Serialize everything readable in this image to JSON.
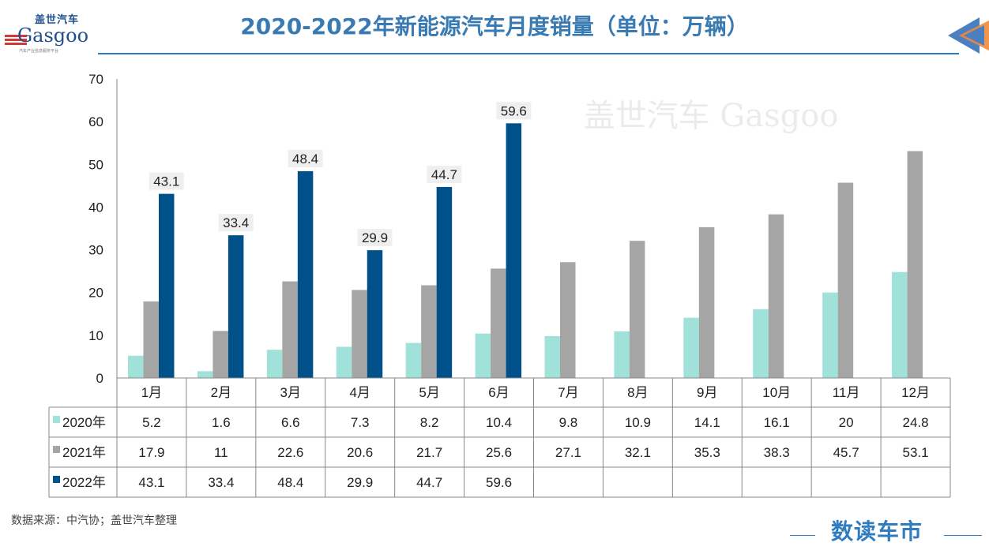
{
  "title": "2020-2022年新能源汽车月度销量（单位：万辆）",
  "logo": {
    "cn": "盖世汽车",
    "en": "Gasgoo",
    "tagline": "汽车产业信息服务平台"
  },
  "source": "数据来源：中汽协；盖世汽车整理",
  "brand": "数读车市",
  "watermark": "盖世汽车 Gasgoo",
  "chart_data": {
    "type": "bar",
    "title": "2020-2022年新能源汽车月度销量（单位：万辆）",
    "categories": [
      "1月",
      "2月",
      "3月",
      "4月",
      "5月",
      "6月",
      "7月",
      "8月",
      "9月",
      "10月",
      "11月",
      "12月"
    ],
    "series": [
      {
        "name": "2020年",
        "color": "#a0e1d9",
        "values": [
          5.2,
          1.6,
          6.6,
          7.3,
          8.2,
          10.4,
          9.8,
          10.9,
          14.1,
          16.1,
          20,
          24.8
        ]
      },
      {
        "name": "2021年",
        "color": "#a5a5a5",
        "values": [
          17.9,
          11,
          22.6,
          20.6,
          21.7,
          25.6,
          27.1,
          32.1,
          35.3,
          38.3,
          45.7,
          53.1
        ]
      },
      {
        "name": "2022年",
        "color": "#00518a",
        "values": [
          43.1,
          33.4,
          48.4,
          29.9,
          44.7,
          59.6,
          null,
          null,
          null,
          null,
          null,
          null
        ],
        "data_labels": true
      }
    ],
    "ylim": [
      0,
      70
    ],
    "yticks": [
      0,
      10,
      20,
      30,
      40,
      50,
      60,
      70
    ],
    "grid": false,
    "legend": "data-table"
  }
}
